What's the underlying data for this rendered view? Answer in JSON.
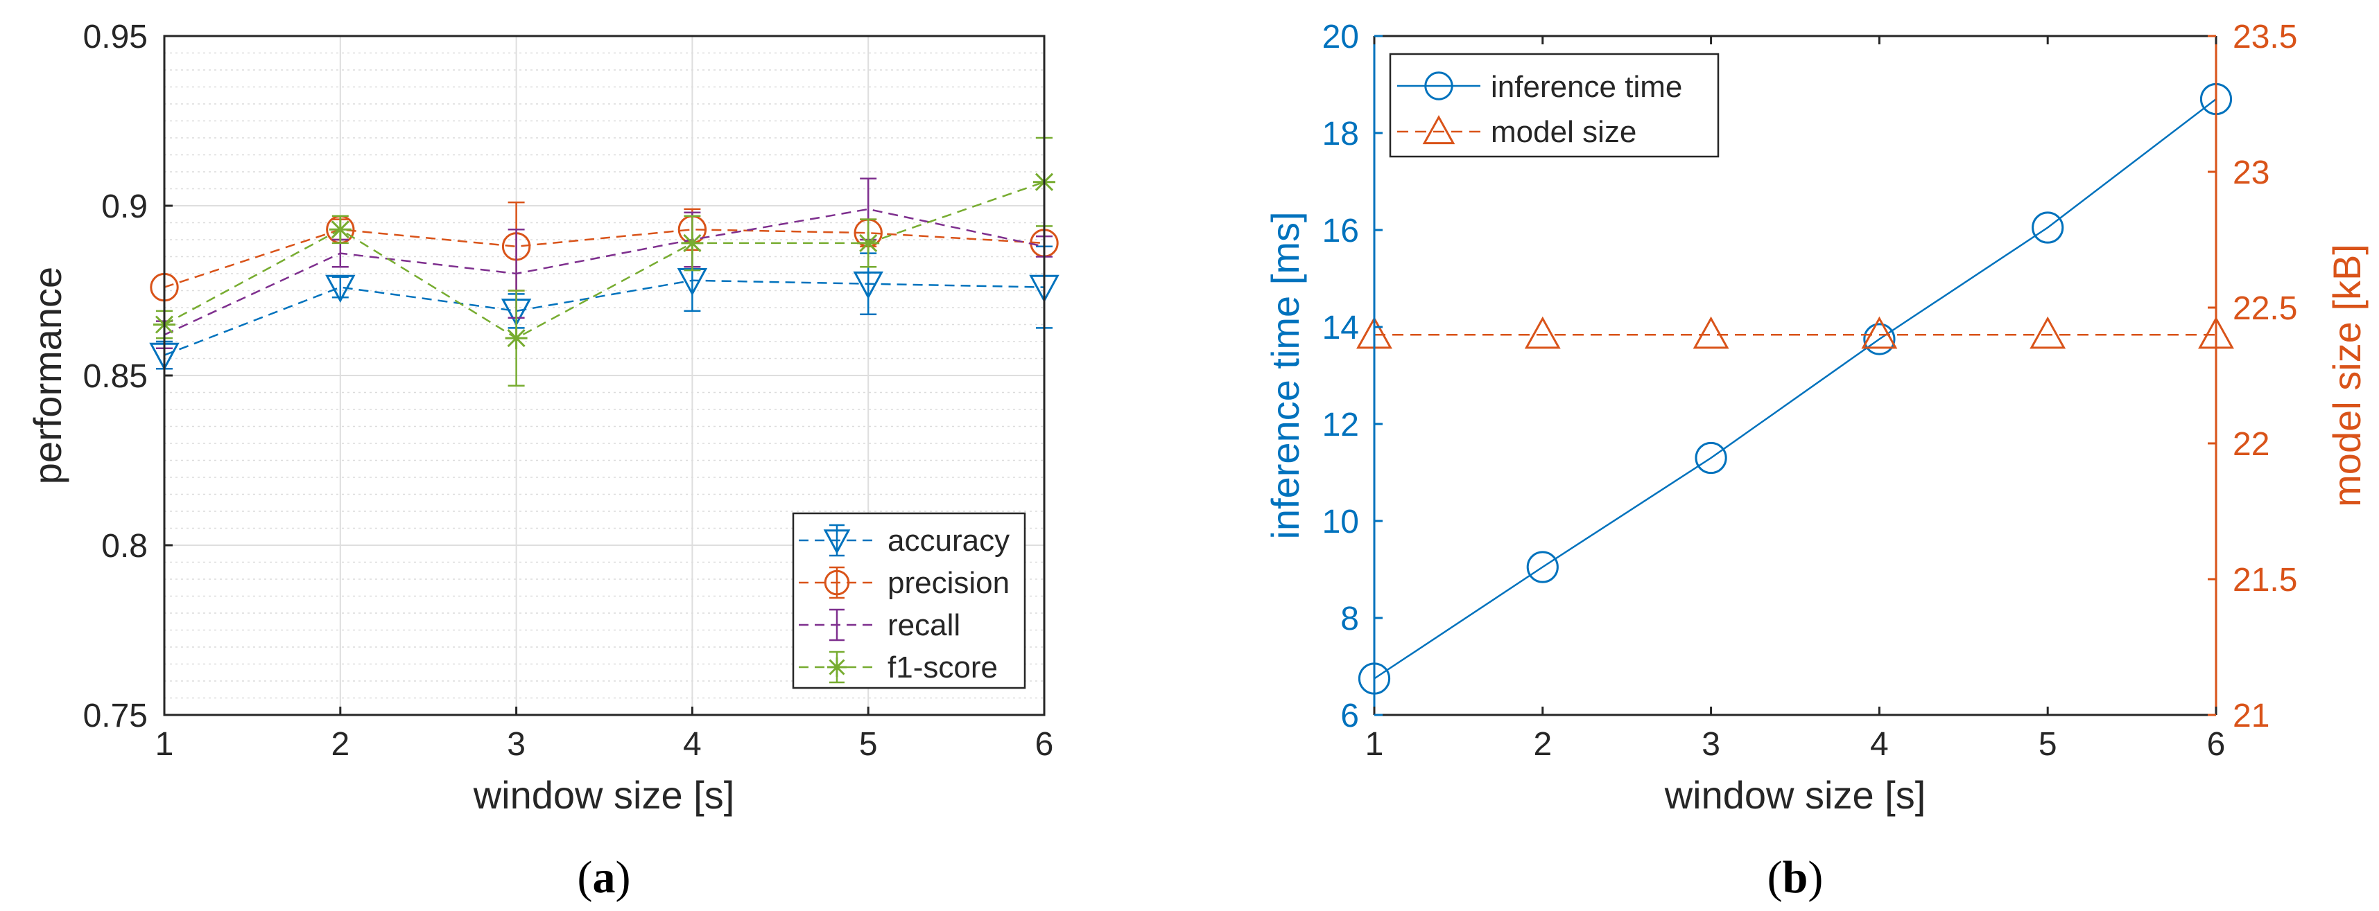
{
  "chart_data": [
    {
      "panel": "(a)",
      "panel_label": {
        "open": "(",
        "letter": "a",
        "close": ")"
      },
      "type": "line",
      "xlabel": "window size [s]",
      "ylabel": "performance",
      "x": [
        1,
        2,
        3,
        4,
        5,
        6
      ],
      "xlim": [
        1,
        6
      ],
      "ylim": [
        0.75,
        0.95
      ],
      "xticks": [
        1,
        2,
        3,
        4,
        5,
        6
      ],
      "yticks": [
        0.75,
        0.8,
        0.85,
        0.9,
        0.95
      ],
      "ytick_labels": [
        "0.75",
        "0.8",
        "0.85",
        "0.9",
        "0.95"
      ],
      "grid": true,
      "minor_grid": true,
      "legend_position": "bottom-right",
      "series": [
        {
          "name": "accuracy",
          "marker": "triangle-down",
          "color": "#0072BD",
          "linestyle": "dashed",
          "values": [
            0.856,
            0.876,
            0.869,
            0.878,
            0.877,
            0.876
          ],
          "errors": [
            0.004,
            0.003,
            0.005,
            0.009,
            0.009,
            0.012
          ]
        },
        {
          "name": "precision",
          "marker": "circle",
          "color": "#D95319",
          "linestyle": "dashed",
          "values": [
            0.876,
            0.893,
            0.888,
            0.893,
            0.892,
            0.889
          ],
          "errors": [
            0.0,
            0.003,
            0.013,
            0.006,
            0.004,
            0.0
          ]
        },
        {
          "name": "recall",
          "marker": "none",
          "color": "#7E2F8E",
          "linestyle": "dashed",
          "values": [
            0.862,
            0.886,
            0.88,
            0.89,
            0.899,
            0.888
          ],
          "errors": [
            0.004,
            0.004,
            0.013,
            0.008,
            0.009,
            0.003
          ]
        },
        {
          "name": "f1-score",
          "marker": "asterisk",
          "color": "#77AC30",
          "linestyle": "dashed",
          "values": [
            0.865,
            0.893,
            0.861,
            0.889,
            0.889,
            0.907
          ],
          "errors": [
            0.004,
            0.004,
            0.014,
            0.008,
            0.007,
            0.013
          ]
        }
      ]
    },
    {
      "panel": "(b)",
      "panel_label": {
        "open": "(",
        "letter": "b",
        "close": ")"
      },
      "type": "line",
      "xlabel": "window size [s]",
      "ylabel_left": "inference time [ms]",
      "ylabel_right": "model size [kB]",
      "x": [
        1,
        2,
        3,
        4,
        5,
        6
      ],
      "xlim": [
        1,
        6
      ],
      "ylim_left": [
        6,
        20
      ],
      "ylim_right": [
        21,
        23.5
      ],
      "xticks": [
        1,
        2,
        3,
        4,
        5,
        6
      ],
      "yticks_left": [
        6,
        8,
        10,
        12,
        14,
        16,
        18,
        20
      ],
      "yticks_right": [
        21,
        21.5,
        22,
        22.5,
        23,
        23.5
      ],
      "ytick_labels_right": [
        "21",
        "21.5",
        "22",
        "22.5",
        "23",
        "23.5"
      ],
      "grid": false,
      "legend_position": "top-left",
      "series": [
        {
          "name": "inference time",
          "axis": "left",
          "marker": "circle",
          "color": "#0072BD",
          "linestyle": "solid",
          "values": [
            6.75,
            9.05,
            11.3,
            13.75,
            16.05,
            18.7
          ]
        },
        {
          "name": "model size",
          "axis": "right",
          "marker": "triangle-up",
          "color": "#D95319",
          "linestyle": "dashed",
          "values": [
            22.4,
            22.4,
            22.4,
            22.4,
            22.4,
            22.4
          ]
        }
      ]
    }
  ]
}
